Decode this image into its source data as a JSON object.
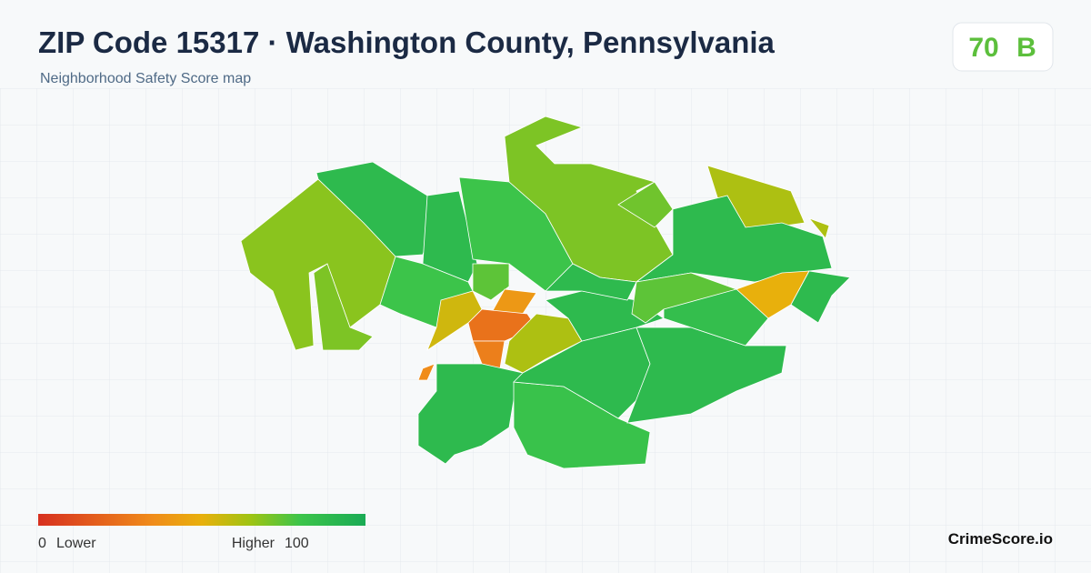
{
  "header": {
    "title": "ZIP Code 15317 · Washington County, Pennsylvania",
    "subtitle": "Neighborhood Safety Score map",
    "score": 70,
    "grade": "B"
  },
  "map": {
    "regions": [
      {
        "score": 68
      },
      {
        "score": 88
      },
      {
        "score": 88
      },
      {
        "score": 80
      },
      {
        "score": 70
      },
      {
        "score": 72
      },
      {
        "score": 62
      },
      {
        "score": 62
      },
      {
        "score": 88
      },
      {
        "score": 50
      },
      {
        "score": 88
      },
      {
        "score": 80
      },
      {
        "score": 70
      },
      {
        "score": 75
      },
      {
        "score": 40
      },
      {
        "score": 25
      },
      {
        "score": 30
      },
      {
        "score": 55
      },
      {
        "score": 62
      },
      {
        "score": 35
      },
      {
        "score": 88
      },
      {
        "score": 82
      },
      {
        "score": 88
      },
      {
        "score": 88
      },
      {
        "score": 88
      },
      {
        "score": 85
      },
      {
        "score": 75
      },
      {
        "score": 88
      }
    ]
  },
  "legend": {
    "min": 0,
    "min_label": "Lower",
    "max_label": "Higher",
    "max": 100
  },
  "brand": "CrimeScore.io"
}
